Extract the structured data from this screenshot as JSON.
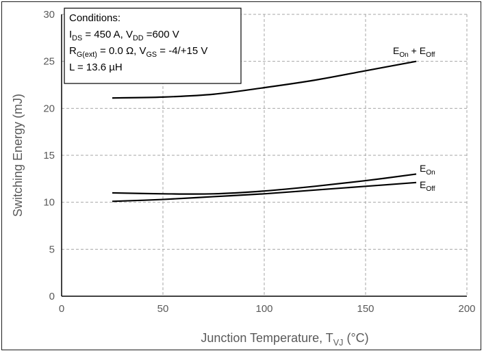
{
  "chart_data": {
    "type": "line",
    "xlabel": {
      "main": "Junction Temperature, T",
      "sub": "VJ",
      "tail": " (°C)"
    },
    "ylabel": "Switching Energy  (mJ)",
    "xlim": [
      0,
      200
    ],
    "ylim": [
      0,
      30
    ],
    "xticks": [
      0,
      50,
      100,
      150,
      200
    ],
    "yticks": [
      0,
      5,
      10,
      15,
      20,
      25,
      30
    ],
    "grid": "dashed",
    "series": [
      {
        "id": "total",
        "label_parts": [
          {
            "t": "E"
          },
          {
            "t": "On",
            "sub": true
          },
          {
            "t": " + "
          },
          {
            "t": "E"
          },
          {
            "t": "Off",
            "sub": true
          }
        ],
        "x": [
          25,
          50,
          75,
          100,
          125,
          150,
          175
        ],
        "y": [
          21.1,
          21.2,
          21.5,
          22.2,
          23.0,
          24.0,
          25.0
        ]
      },
      {
        "id": "eon",
        "label_parts": [
          {
            "t": "E"
          },
          {
            "t": "On",
            "sub": true
          }
        ],
        "x": [
          25,
          50,
          75,
          100,
          125,
          150,
          175
        ],
        "y": [
          11.0,
          10.9,
          10.9,
          11.2,
          11.7,
          12.3,
          13.0
        ]
      },
      {
        "id": "eoff",
        "label_parts": [
          {
            "t": "E"
          },
          {
            "t": "Off",
            "sub": true
          }
        ],
        "x": [
          25,
          50,
          75,
          100,
          125,
          150,
          175
        ],
        "y": [
          10.1,
          10.3,
          10.6,
          10.9,
          11.3,
          11.7,
          12.1
        ]
      }
    ],
    "conditions": {
      "title": "Conditions:",
      "lines": [
        [
          {
            "t": "I"
          },
          {
            "t": "DS",
            "sub": true
          },
          {
            "t": " = 450 A, V"
          },
          {
            "t": "DD",
            "sub": true
          },
          {
            "t": " =600 V"
          }
        ],
        [
          {
            "t": "R"
          },
          {
            "t": "G(ext)",
            "sub": true
          },
          {
            "t": " = 0.0 Ω,  V"
          },
          {
            "t": "GS",
            "sub": true
          },
          {
            "t": " = -4/+15 V"
          }
        ],
        [
          {
            "t": "L = 13.6 µH"
          }
        ]
      ]
    }
  }
}
